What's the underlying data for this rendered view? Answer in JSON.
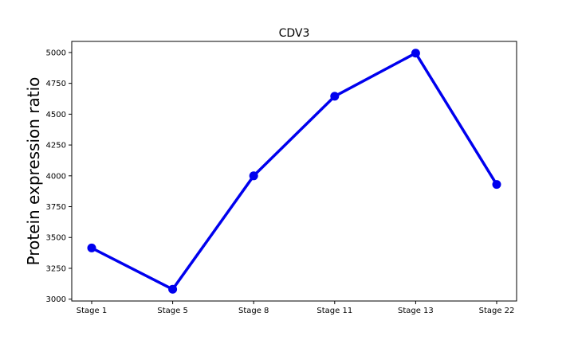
{
  "chart_data": {
    "type": "line",
    "title": "CDV3",
    "xlabel": "",
    "ylabel": "Protein expression ratio",
    "categories": [
      "Stage 1",
      "Stage 5",
      "Stage 8",
      "Stage 11",
      "Stage 13",
      "Stage 22"
    ],
    "series": [
      {
        "values": [
          3415,
          3080,
          4000,
          4645,
          4995,
          3930
        ]
      }
    ],
    "ylim": [
      2985,
      5090
    ],
    "yticks": [
      3000,
      3250,
      3500,
      3750,
      4000,
      4250,
      4500,
      4750,
      5000
    ],
    "ytick_labels": [
      "3000",
      "3250",
      "3500",
      "3750",
      "4000",
      "4250",
      "4500",
      "4750",
      "5000"
    ],
    "grid": false,
    "legend": "none",
    "colors": {
      "series": "#0000ee",
      "axes": "#000000"
    }
  }
}
